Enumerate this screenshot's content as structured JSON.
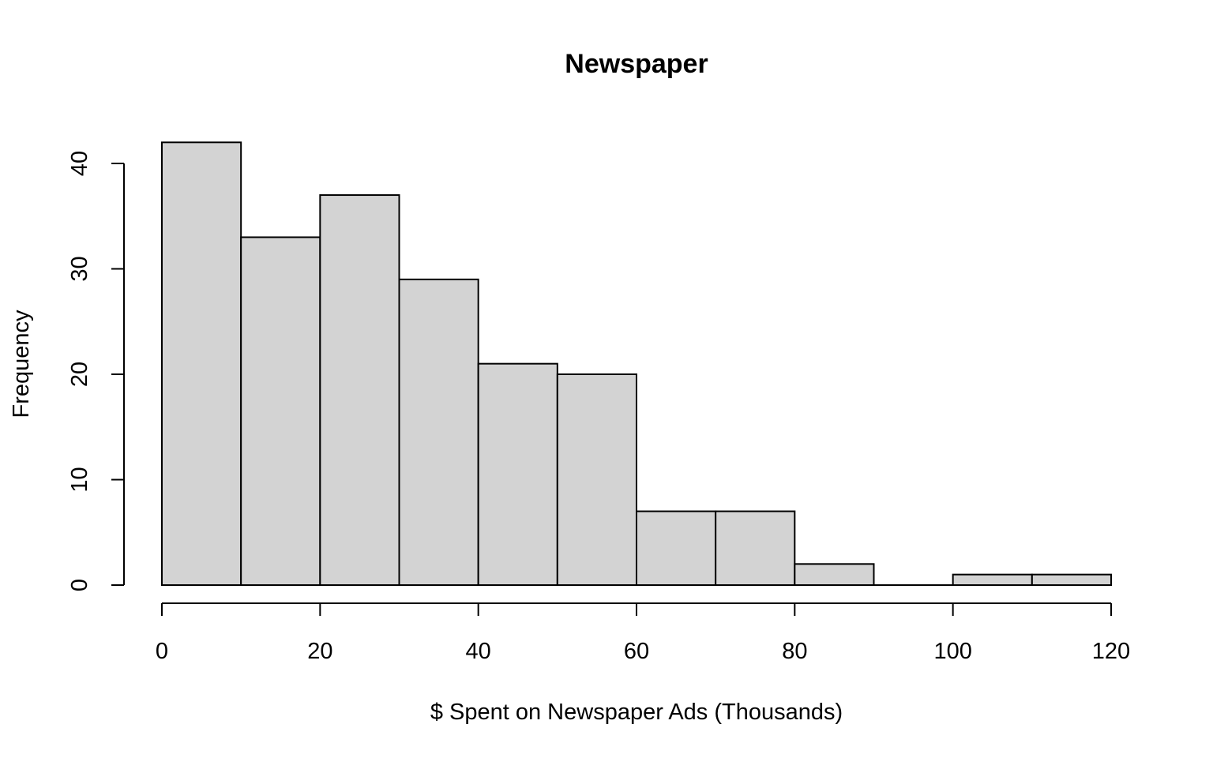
{
  "chart_data": {
    "type": "bar",
    "subtype": "histogram",
    "title": "Newspaper",
    "xlabel": "$ Spent on Newspaper Ads (Thousands)",
    "ylabel": "Frequency",
    "bins": [
      {
        "start": 0,
        "end": 10,
        "count": 42
      },
      {
        "start": 10,
        "end": 20,
        "count": 33
      },
      {
        "start": 20,
        "end": 30,
        "count": 37
      },
      {
        "start": 30,
        "end": 40,
        "count": 29
      },
      {
        "start": 40,
        "end": 50,
        "count": 21
      },
      {
        "start": 50,
        "end": 60,
        "count": 20
      },
      {
        "start": 60,
        "end": 70,
        "count": 7
      },
      {
        "start": 70,
        "end": 80,
        "count": 7
      },
      {
        "start": 80,
        "end": 90,
        "count": 2
      },
      {
        "start": 90,
        "end": 100,
        "count": 0
      },
      {
        "start": 100,
        "end": 110,
        "count": 1
      },
      {
        "start": 110,
        "end": 120,
        "count": 1
      }
    ],
    "xlim": [
      0,
      120
    ],
    "ylim": [
      0,
      42
    ],
    "x_ticks": [
      0,
      20,
      40,
      60,
      80,
      100,
      120
    ],
    "y_ticks": [
      0,
      10,
      20,
      30,
      40
    ],
    "grid": false,
    "legend": "none",
    "bar_color": "#d3d3d3",
    "edge_color": "#000000"
  }
}
